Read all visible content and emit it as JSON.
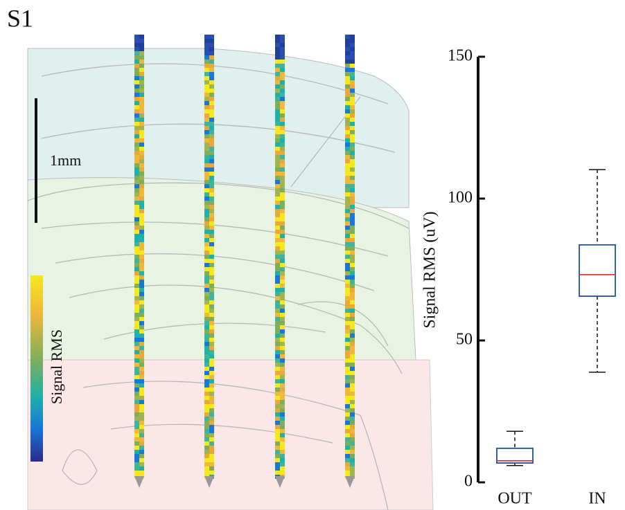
{
  "panel_label": "S1",
  "scale_bar_label": "1mm",
  "colorbar_label": "Signal RMS",
  "chart_data": {
    "type": "box",
    "ylabel": "Signal RMS (uV)",
    "categories": [
      "OUT",
      "IN"
    ],
    "boxes": [
      {
        "min": 5.9,
        "q1": 6.8,
        "median": 7.6,
        "q3": 12,
        "max": 18
      },
      {
        "min": 38.8,
        "q1": 65.6,
        "median": 73.2,
        "q3": 83.7,
        "max": 110.2
      }
    ],
    "box_color": "#1f4e9c",
    "median_color": "#e8322a",
    "whisker_color": "#111111",
    "ylim": [
      0,
      150
    ],
    "yticks": [
      0,
      50,
      100,
      150
    ]
  }
}
